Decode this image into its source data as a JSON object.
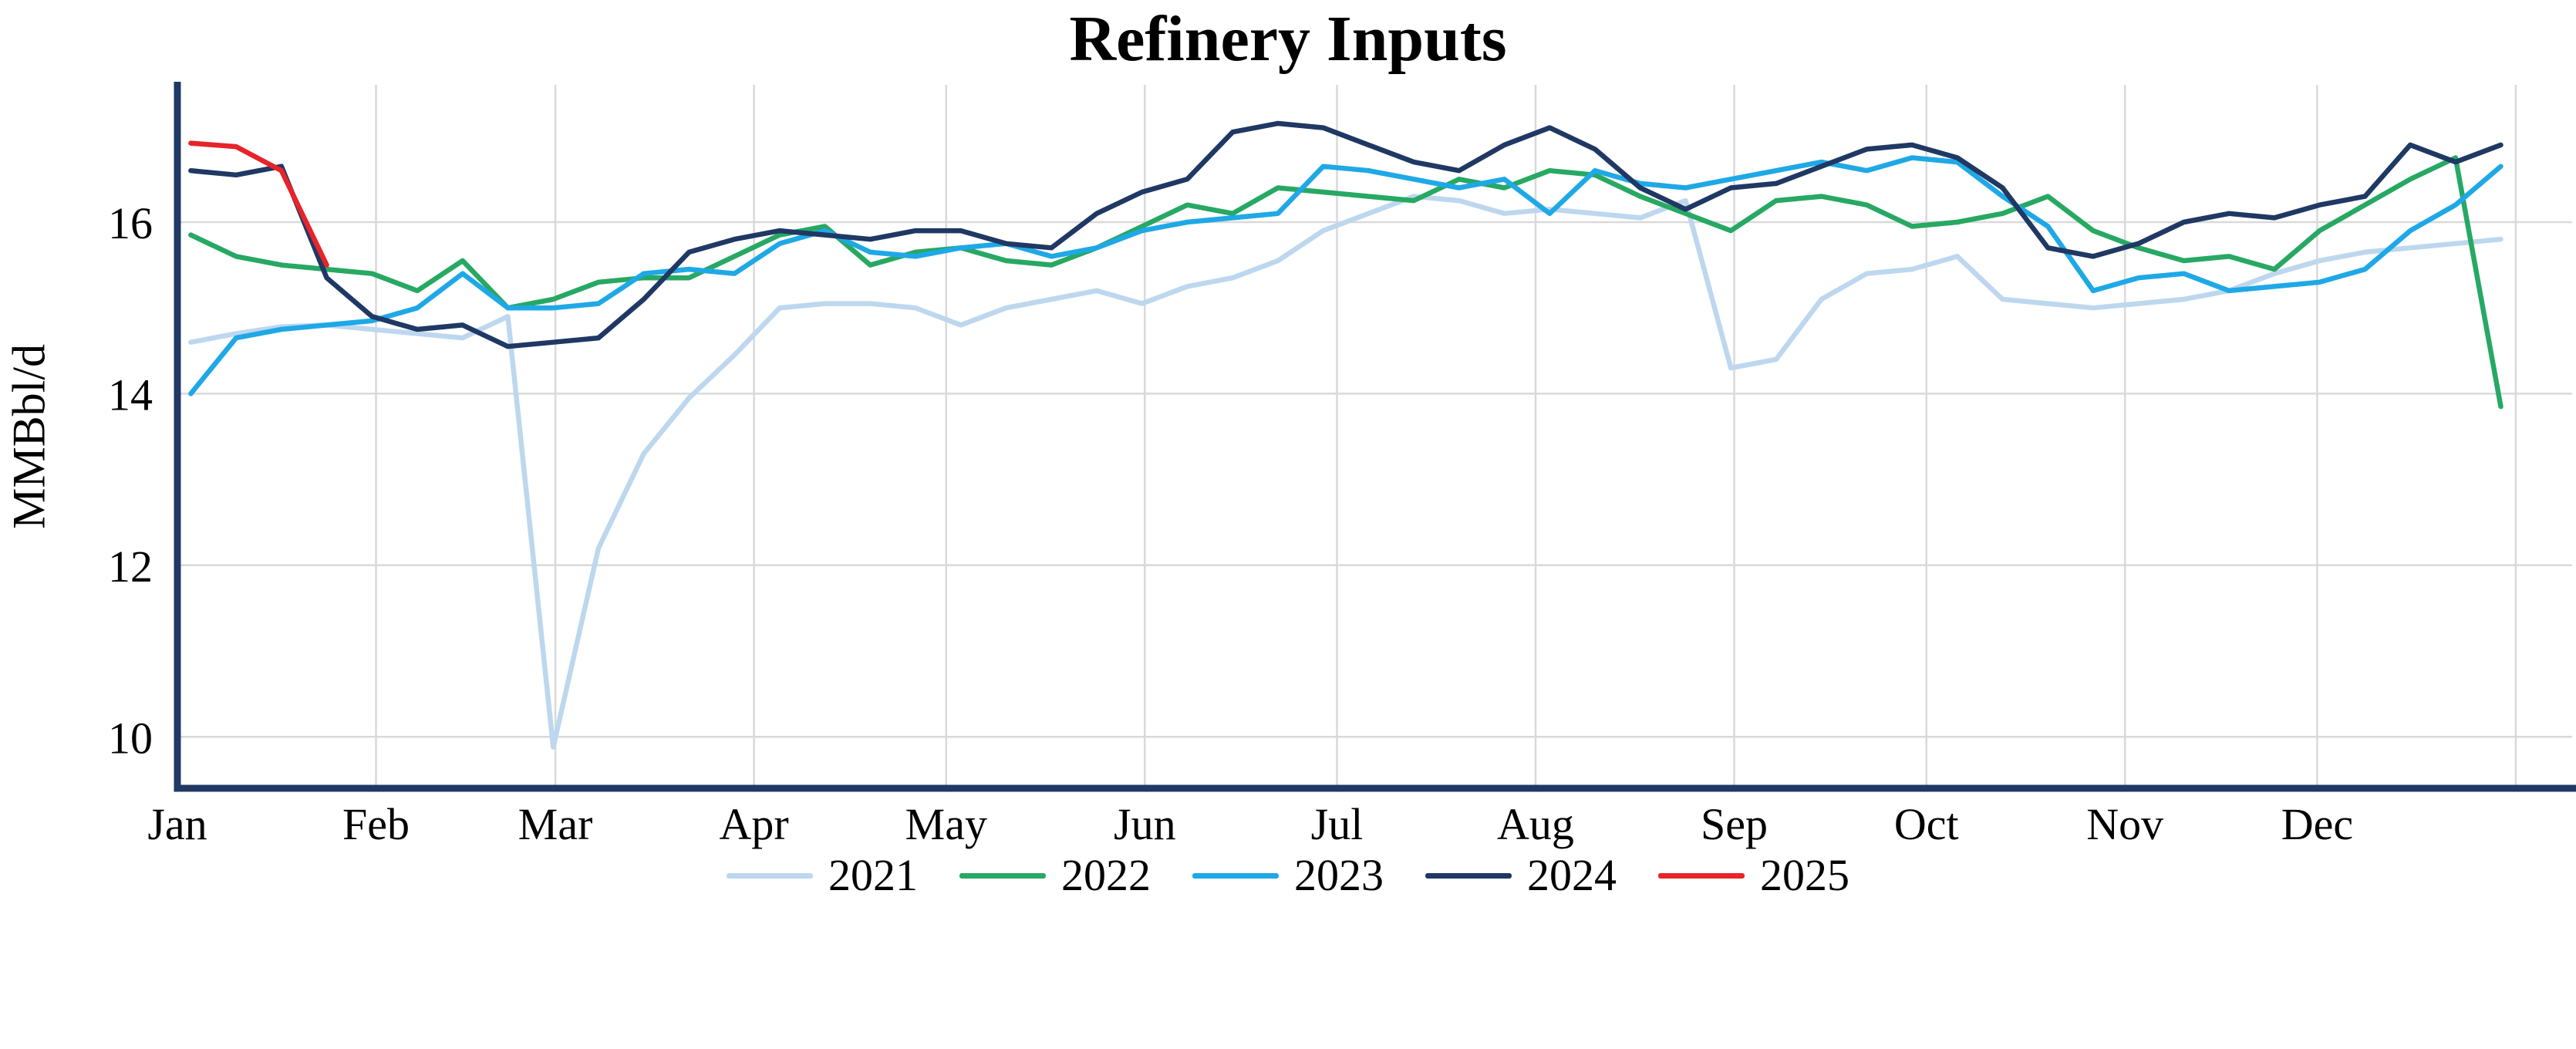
{
  "page": {
    "background": "#ffffff"
  },
  "chart_data": {
    "type": "line",
    "title": "Refinery Inputs",
    "xlabel": "",
    "ylabel": "MMBbl/d",
    "x_unit": "week-of-year",
    "x_tick_labels": [
      "Jan",
      "Feb",
      "Mar",
      "Apr",
      "May",
      "Jun",
      "Jul",
      "Aug",
      "Sep",
      "Oct",
      "Nov",
      "Dec"
    ],
    "yticks": [
      10,
      12,
      14,
      16
    ],
    "ylim": [
      9.4,
      17.6
    ],
    "grid": true,
    "legend_position": "bottom",
    "axis_color": "#1f3864",
    "grid_color": "#d9d9d9",
    "series": [
      {
        "name": "2021",
        "color": "#bdd7ee",
        "values": [
          14.6,
          14.7,
          14.78,
          14.8,
          14.75,
          14.7,
          14.65,
          14.9,
          9.88,
          12.2,
          13.3,
          13.95,
          14.45,
          15.0,
          15.05,
          15.05,
          15.0,
          14.8,
          15.0,
          15.1,
          15.2,
          15.05,
          15.25,
          15.35,
          15.55,
          15.9,
          16.1,
          16.3,
          16.25,
          16.1,
          16.15,
          16.1,
          16.05,
          16.25,
          14.3,
          14.4,
          15.1,
          15.4,
          15.45,
          15.6,
          15.1,
          15.05,
          15.0,
          15.05,
          15.1,
          15.2,
          15.4,
          15.55,
          15.65,
          15.7,
          15.75,
          15.8
        ]
      },
      {
        "name": "2022",
        "color": "#27a863",
        "values": [
          15.85,
          15.6,
          15.5,
          15.45,
          15.4,
          15.2,
          15.55,
          15.0,
          15.1,
          15.3,
          15.35,
          15.35,
          15.6,
          15.85,
          15.95,
          15.5,
          15.65,
          15.7,
          15.55,
          15.5,
          15.7,
          15.95,
          16.2,
          16.1,
          16.4,
          16.35,
          16.3,
          16.25,
          16.5,
          16.4,
          16.6,
          16.55,
          16.3,
          16.1,
          15.9,
          16.25,
          16.3,
          16.2,
          15.95,
          16.0,
          16.1,
          16.3,
          15.9,
          15.7,
          15.55,
          15.6,
          15.45,
          15.9,
          16.2,
          16.5,
          16.75,
          13.85
        ]
      },
      {
        "name": "2023",
        "color": "#1fa8e6",
        "values": [
          14.0,
          14.65,
          14.75,
          14.8,
          14.85,
          15.0,
          15.4,
          15.0,
          15.0,
          15.05,
          15.4,
          15.45,
          15.4,
          15.75,
          15.9,
          15.65,
          15.6,
          15.7,
          15.75,
          15.6,
          15.7,
          15.9,
          16.0,
          16.05,
          16.1,
          16.65,
          16.6,
          16.5,
          16.4,
          16.5,
          16.1,
          16.6,
          16.45,
          16.4,
          16.5,
          16.6,
          16.7,
          16.6,
          16.75,
          16.7,
          16.3,
          15.95,
          15.2,
          15.35,
          15.4,
          15.2,
          15.25,
          15.3,
          15.45,
          15.9,
          16.2,
          16.65
        ]
      },
      {
        "name": "2024",
        "color": "#1f3864",
        "values": [
          16.6,
          16.55,
          16.65,
          15.35,
          14.9,
          14.75,
          14.8,
          14.55,
          14.6,
          14.65,
          15.1,
          15.65,
          15.8,
          15.9,
          15.85,
          15.8,
          15.9,
          15.9,
          15.75,
          15.7,
          16.1,
          16.35,
          16.5,
          17.05,
          17.15,
          17.1,
          16.9,
          16.7,
          16.6,
          16.9,
          17.1,
          16.85,
          16.4,
          16.15,
          16.4,
          16.45,
          16.65,
          16.85,
          16.9,
          16.75,
          16.4,
          15.7,
          15.6,
          15.75,
          16.0,
          16.1,
          16.05,
          16.2,
          16.3,
          16.9,
          16.7,
          16.9
        ]
      },
      {
        "name": "2025",
        "color": "#e62429",
        "values": [
          16.92,
          16.88,
          16.6,
          15.5
        ]
      }
    ]
  }
}
